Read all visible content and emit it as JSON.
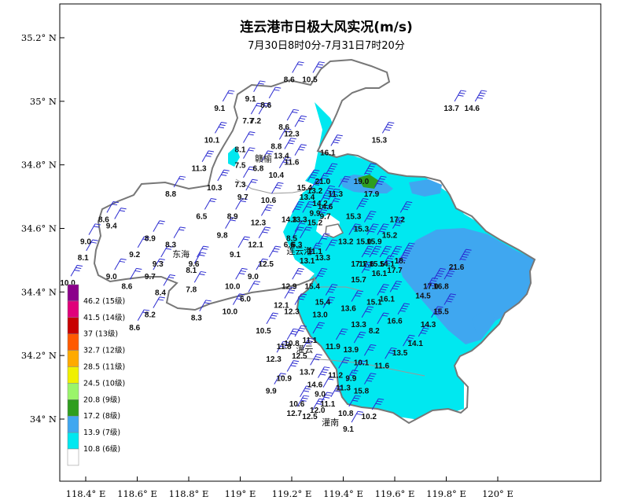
{
  "map": {
    "title": "连云港市日极大风实况(m/s)",
    "subtitle": "7月30日8时0分-7月31日7时20分",
    "lon_ticks": [
      {
        "label": "118.4° E",
        "lon": 118.4
      },
      {
        "label": "118.6° E",
        "lon": 118.6
      },
      {
        "label": "118.8° E",
        "lon": 118.8
      },
      {
        "label": "119° E",
        "lon": 119.0
      },
      {
        "label": "119.2° E",
        "lon": 119.2
      },
      {
        "label": "119.4° E",
        "lon": 119.4
      },
      {
        "label": "119.6° E",
        "lon": 119.6
      },
      {
        "label": "119.8° E",
        "lon": 119.8
      },
      {
        "label": "120° E",
        "lon": 120.0
      }
    ],
    "lat_ticks": [
      {
        "label": "35.2° N",
        "lat": 35.2
      },
      {
        "label": "35° N",
        "lat": 35.0
      },
      {
        "label": "34.8° N",
        "lat": 34.8
      },
      {
        "label": "34.6° N",
        "lat": 34.6
      },
      {
        "label": "34.4° N",
        "lat": 34.4
      },
      {
        "label": "34.2° N",
        "lat": 34.2
      },
      {
        "label": "34° N",
        "lat": 34.0
      }
    ],
    "extent": {
      "lon_min": 118.3,
      "lon_max": 120.05,
      "lat_min": 33.8,
      "lat_max": 35.3
    },
    "cities": [
      {
        "name": "赣榆",
        "lon": 119.09,
        "lat": 34.82
      },
      {
        "name": "连云港",
        "lon": 119.23,
        "lat": 34.53
      },
      {
        "name": "东海",
        "lon": 118.77,
        "lat": 34.52
      },
      {
        "name": "灌云",
        "lon": 119.25,
        "lat": 34.22
      },
      {
        "name": "灌南",
        "lon": 119.35,
        "lat": 33.99
      }
    ],
    "stations": [
      {
        "v": "8.6",
        "lon": 119.19,
        "lat": 35.07
      },
      {
        "v": "10.5",
        "lon": 119.27,
        "lat": 35.07
      },
      {
        "v": "9.1",
        "lon": 118.92,
        "lat": 34.98
      },
      {
        "v": "9.1",
        "lon": 119.04,
        "lat": 35.01
      },
      {
        "v": "8.6",
        "lon": 119.1,
        "lat": 34.99
      },
      {
        "v": "13.7",
        "lon": 119.82,
        "lat": 34.98
      },
      {
        "v": "14.6",
        "lon": 119.9,
        "lat": 34.98
      },
      {
        "v": "7.7",
        "lon": 119.03,
        "lat": 34.94
      },
      {
        "v": "7.2",
        "lon": 119.06,
        "lat": 34.94
      },
      {
        "v": "8.6",
        "lon": 119.17,
        "lat": 34.92
      },
      {
        "v": "12.3",
        "lon": 119.2,
        "lat": 34.9
      },
      {
        "v": "15.3",
        "lon": 119.54,
        "lat": 34.88
      },
      {
        "v": "10.1",
        "lon": 118.89,
        "lat": 34.88
      },
      {
        "v": "8.8",
        "lon": 119.14,
        "lat": 34.86
      },
      {
        "v": "8.1",
        "lon": 119.0,
        "lat": 34.85
      },
      {
        "v": "16.1",
        "lon": 119.34,
        "lat": 34.84
      },
      {
        "v": "13.4",
        "lon": 119.16,
        "lat": 34.83
      },
      {
        "v": "11.6",
        "lon": 119.2,
        "lat": 34.81
      },
      {
        "v": "7.5",
        "lon": 119.0,
        "lat": 34.8
      },
      {
        "v": "6.8",
        "lon": 119.07,
        "lat": 34.79
      },
      {
        "v": "11.3",
        "lon": 118.84,
        "lat": 34.79
      },
      {
        "v": "10.4",
        "lon": 119.14,
        "lat": 34.77
      },
      {
        "v": "21.0",
        "lon": 119.32,
        "lat": 34.75
      },
      {
        "v": "19.0",
        "lon": 119.47,
        "lat": 34.75
      },
      {
        "v": "7.3",
        "lon": 119.0,
        "lat": 34.74
      },
      {
        "v": "10.3",
        "lon": 118.9,
        "lat": 34.73
      },
      {
        "v": "15.4",
        "lon": 119.25,
        "lat": 34.73
      },
      {
        "v": "13.2",
        "lon": 119.29,
        "lat": 34.72
      },
      {
        "v": "11.3",
        "lon": 119.37,
        "lat": 34.71
      },
      {
        "v": "17.9",
        "lon": 119.51,
        "lat": 34.71
      },
      {
        "v": "8.8",
        "lon": 118.73,
        "lat": 34.71
      },
      {
        "v": "9.7",
        "lon": 119.01,
        "lat": 34.7
      },
      {
        "v": "13.4",
        "lon": 119.26,
        "lat": 34.7
      },
      {
        "v": "10.6",
        "lon": 119.11,
        "lat": 34.69
      },
      {
        "v": "14.2",
        "lon": 119.31,
        "lat": 34.68
      },
      {
        "v": "14.6",
        "lon": 119.33,
        "lat": 34.67
      },
      {
        "v": "17.2",
        "lon": 119.61,
        "lat": 34.63
      },
      {
        "v": "9.9",
        "lon": 119.29,
        "lat": 34.65
      },
      {
        "v": "9.7",
        "lon": 119.33,
        "lat": 34.64
      },
      {
        "v": "14.3",
        "lon": 119.19,
        "lat": 34.63
      },
      {
        "v": "13.3",
        "lon": 119.23,
        "lat": 34.63
      },
      {
        "v": "15.2",
        "lon": 119.29,
        "lat": 34.62
      },
      {
        "v": "15.3",
        "lon": 119.44,
        "lat": 34.64
      },
      {
        "v": "8.6",
        "lon": 118.47,
        "lat": 34.63
      },
      {
        "v": "6.5",
        "lon": 118.85,
        "lat": 34.64
      },
      {
        "v": "8.9",
        "lon": 118.97,
        "lat": 34.64
      },
      {
        "v": "12.3",
        "lon": 119.07,
        "lat": 34.62
      },
      {
        "v": "9.4",
        "lon": 118.5,
        "lat": 34.61
      },
      {
        "v": "15.3",
        "lon": 119.47,
        "lat": 34.6
      },
      {
        "v": "15.2",
        "lon": 119.58,
        "lat": 34.58
      },
      {
        "v": "9.8",
        "lon": 118.93,
        "lat": 34.58
      },
      {
        "v": "8.9",
        "lon": 118.65,
        "lat": 34.57
      },
      {
        "v": "9.0",
        "lon": 118.4,
        "lat": 34.56
      },
      {
        "v": "8.5",
        "lon": 119.2,
        "lat": 34.57
      },
      {
        "v": "13.2",
        "lon": 119.41,
        "lat": 34.56
      },
      {
        "v": "15.0",
        "lon": 119.48,
        "lat": 34.56
      },
      {
        "v": "15.9",
        "lon": 119.52,
        "lat": 34.56
      },
      {
        "v": "6.6",
        "lon": 119.19,
        "lat": 34.55
      },
      {
        "v": "6.3",
        "lon": 119.22,
        "lat": 34.55
      },
      {
        "v": "12.1",
        "lon": 119.06,
        "lat": 34.55
      },
      {
        "v": "8.3",
        "lon": 118.73,
        "lat": 34.55
      },
      {
        "v": "11.1",
        "lon": 119.29,
        "lat": 34.53
      },
      {
        "v": "9.1",
        "lon": 118.98,
        "lat": 34.52
      },
      {
        "v": "9.2",
        "lon": 118.59,
        "lat": 34.52
      },
      {
        "v": "13.3",
        "lon": 119.32,
        "lat": 34.51
      },
      {
        "v": "8.1",
        "lon": 118.39,
        "lat": 34.51
      },
      {
        "v": "13.1",
        "lon": 119.26,
        "lat": 34.5
      },
      {
        "v": "17.1",
        "lon": 119.46,
        "lat": 34.49
      },
      {
        "v": "17.6",
        "lon": 119.49,
        "lat": 34.49
      },
      {
        "v": "15.5",
        "lon": 119.53,
        "lat": 34.49
      },
      {
        "v": "14.1",
        "lon": 119.57,
        "lat": 34.49
      },
      {
        "v": "18.",
        "lon": 119.62,
        "lat": 34.5
      },
      {
        "v": "21.6",
        "lon": 119.84,
        "lat": 34.48
      },
      {
        "v": "9.3",
        "lon": 118.68,
        "lat": 34.49
      },
      {
        "v": "12.5",
        "lon": 119.1,
        "lat": 34.49
      },
      {
        "v": "9.6",
        "lon": 118.82,
        "lat": 34.49
      },
      {
        "v": "8.1",
        "lon": 118.81,
        "lat": 34.47
      },
      {
        "v": "16.1",
        "lon": 119.54,
        "lat": 34.46
      },
      {
        "v": "17.7",
        "lon": 119.6,
        "lat": 34.47
      },
      {
        "v": "9.0",
        "lon": 118.5,
        "lat": 34.45
      },
      {
        "v": "9.7",
        "lon": 118.65,
        "lat": 34.45
      },
      {
        "v": "9.0",
        "lon": 119.05,
        "lat": 34.45
      },
      {
        "v": "15.7",
        "lon": 119.46,
        "lat": 34.44
      },
      {
        "v": "10.0",
        "lon": 118.33,
        "lat": 34.43
      },
      {
        "v": "17.0",
        "lon": 119.74,
        "lat": 34.42
      },
      {
        "v": "16.8",
        "lon": 119.78,
        "lat": 34.42
      },
      {
        "v": "8.6",
        "lon": 118.56,
        "lat": 34.42
      },
      {
        "v": "12.9",
        "lon": 119.19,
        "lat": 34.42
      },
      {
        "v": "15.4",
        "lon": 119.28,
        "lat": 34.42
      },
      {
        "v": "10.0",
        "lon": 118.97,
        "lat": 34.42
      },
      {
        "v": "7.8",
        "lon": 118.81,
        "lat": 34.41
      },
      {
        "v": "8.4",
        "lon": 118.69,
        "lat": 34.4
      },
      {
        "v": "14.5",
        "lon": 119.71,
        "lat": 34.39
      },
      {
        "v": "6.0",
        "lon": 119.02,
        "lat": 34.38
      },
      {
        "v": "16.1",
        "lon": 119.57,
        "lat": 34.38
      },
      {
        "v": "15.4",
        "lon": 119.32,
        "lat": 34.37
      },
      {
        "v": "15.1",
        "lon": 119.52,
        "lat": 34.37
      },
      {
        "v": "12.1",
        "lon": 119.16,
        "lat": 34.36
      },
      {
        "v": "13.6",
        "lon": 119.42,
        "lat": 34.35
      },
      {
        "v": "10.0",
        "lon": 118.96,
        "lat": 34.34
      },
      {
        "v": "8.2",
        "lon": 118.65,
        "lat": 34.33
      },
      {
        "v": "12.3",
        "lon": 119.2,
        "lat": 34.34
      },
      {
        "v": "15.5",
        "lon": 119.78,
        "lat": 34.34
      },
      {
        "v": "13.0",
        "lon": 119.31,
        "lat": 34.33
      },
      {
        "v": "8.3",
        "lon": 118.83,
        "lat": 34.32
      },
      {
        "v": "16.6",
        "lon": 119.6,
        "lat": 34.31
      },
      {
        "v": "8.6",
        "lon": 118.59,
        "lat": 34.29
      },
      {
        "v": "13.3",
        "lon": 119.46,
        "lat": 34.3
      },
      {
        "v": "14.3",
        "lon": 119.73,
        "lat": 34.3
      },
      {
        "v": "8.2",
        "lon": 119.52,
        "lat": 34.28
      },
      {
        "v": "10.5",
        "lon": 119.09,
        "lat": 34.28
      },
      {
        "v": "11.1",
        "lon": 119.27,
        "lat": 34.25
      },
      {
        "v": "14.1",
        "lon": 119.68,
        "lat": 34.24
      },
      {
        "v": "10.8",
        "lon": 119.2,
        "lat": 34.24
      },
      {
        "v": "11.8",
        "lon": 119.17,
        "lat": 34.23
      },
      {
        "v": "11.9",
        "lon": 119.36,
        "lat": 34.23
      },
      {
        "v": "13.9",
        "lon": 119.43,
        "lat": 34.22
      },
      {
        "v": "12.5",
        "lon": 119.23,
        "lat": 34.2
      },
      {
        "v": "13.5",
        "lon": 119.62,
        "lat": 34.21
      },
      {
        "v": "12.3",
        "lon": 119.13,
        "lat": 34.19
      },
      {
        "v": "10.1",
        "lon": 119.47,
        "lat": 34.18
      },
      {
        "v": "11.6",
        "lon": 119.55,
        "lat": 34.17
      },
      {
        "v": "13.7",
        "lon": 119.26,
        "lat": 34.15
      },
      {
        "v": "11.2",
        "lon": 119.37,
        "lat": 34.14
      },
      {
        "v": "10.9",
        "lon": 119.17,
        "lat": 34.13
      },
      {
        "v": "9.9",
        "lon": 119.43,
        "lat": 34.13
      },
      {
        "v": "14.6",
        "lon": 119.29,
        "lat": 34.11
      },
      {
        "v": "11.3",
        "lon": 119.4,
        "lat": 34.1
      },
      {
        "v": "15.8",
        "lon": 119.47,
        "lat": 34.09
      },
      {
        "v": "9.9",
        "lon": 119.12,
        "lat": 34.09
      },
      {
        "v": "9.0",
        "lon": 119.31,
        "lat": 34.08
      },
      {
        "v": "10.6",
        "lon": 119.22,
        "lat": 34.05
      },
      {
        "v": "11.1",
        "lon": 119.34,
        "lat": 34.05
      },
      {
        "v": "12.0",
        "lon": 119.3,
        "lat": 34.03
      },
      {
        "v": "10.8",
        "lon": 119.41,
        "lat": 34.02
      },
      {
        "v": "12.7",
        "lon": 119.21,
        "lat": 34.02
      },
      {
        "v": "12.5",
        "lon": 119.27,
        "lat": 34.01
      },
      {
        "v": "10.2",
        "lon": 119.5,
        "lat": 34.01
      },
      {
        "v": "9.1",
        "lon": 119.42,
        "lat": 33.97
      }
    ]
  },
  "legend": {
    "items": [
      {
        "label": "46.2 (15级)",
        "color": "#8B008B"
      },
      {
        "label": "41.5 (14级)",
        "color": "#E0007A"
      },
      {
        "label": "37 (13级)",
        "color": "#C80000"
      },
      {
        "label": "32.7 (12级)",
        "color": "#FF5A00"
      },
      {
        "label": "28.5 (11级)",
        "color": "#FFAA00"
      },
      {
        "label": "24.5 (10级)",
        "color": "#F0F000"
      },
      {
        "label": "20.8 (9级)",
        "color": "#9AF56A"
      },
      {
        "label": "17.2 (8级)",
        "color": "#2E9E1E"
      },
      {
        "label": "13.9 (7级)",
        "color": "#3FA7F0"
      },
      {
        "label": "10.8 (6级)",
        "color": "#00E8F0"
      },
      {
        "label": "",
        "color": "#FFFFFF"
      }
    ]
  }
}
